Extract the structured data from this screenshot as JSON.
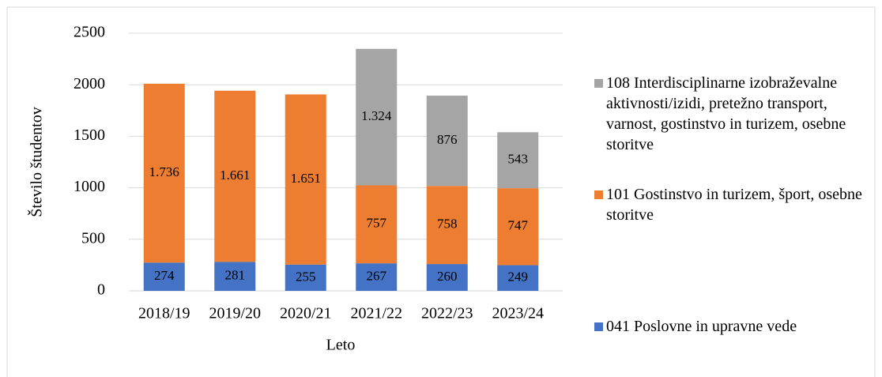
{
  "chart_data": {
    "type": "stacked_bar",
    "x_label": "Leto",
    "y_label": "Število študentov",
    "categories": [
      "2018/19",
      "2019/20",
      "2020/21",
      "2021/22",
      "2022/23",
      "2023/24"
    ],
    "series": [
      {
        "name": "041 Poslovne in upravne vede",
        "color": "#4472c4",
        "values": [
          274,
          281,
          255,
          267,
          260,
          249
        ]
      },
      {
        "name": "101 Gostinstvo in turizem, šport, osebne storitve",
        "color": "#ed7d31",
        "values": [
          1736,
          1661,
          1651,
          757,
          758,
          747
        ],
        "value_labels": [
          "1.736",
          "1.661",
          "1.651",
          "757",
          "758",
          "747"
        ]
      },
      {
        "name": "108 Interdisciplinarne izobraževalne aktivnosti/izidi, pretežno transport, varnost, gostinstvo in turizem, osebne storitve",
        "color": "#a5a5a5",
        "values": [
          null,
          null,
          null,
          1324,
          876,
          543
        ],
        "value_labels": [
          null,
          null,
          null,
          "1.324",
          "876",
          "543"
        ]
      }
    ],
    "ylim": [
      0,
      2500
    ],
    "yticks": [
      0,
      500,
      1000,
      1500,
      2000,
      2500
    ],
    "grid": true
  }
}
